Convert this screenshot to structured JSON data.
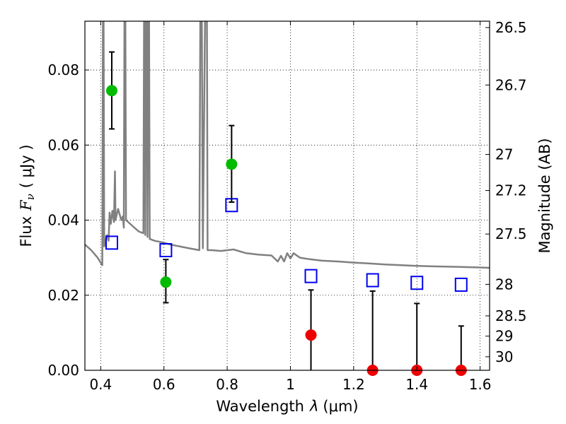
{
  "chart_data": {
    "type": "scatter",
    "xlabel_text": "Wavelength",
    "xlabel_symbol": "λ",
    "xlabel_unit": "(μm)",
    "ylabel_text": "Flux",
    "ylabel_symbol": "F",
    "ylabel_subscript": "ν",
    "ylabel_unit": "( μJy )",
    "y2label": "Magnitude (AB)",
    "xlim": [
      0.35,
      1.63
    ],
    "ylim": [
      0.0,
      0.093
    ],
    "grid": true,
    "x_ticks": [
      {
        "value": 0.4,
        "label": "0.4"
      },
      {
        "value": 0.6,
        "label": "0.6"
      },
      {
        "value": 0.8,
        "label": "0.8"
      },
      {
        "value": 1.0,
        "label": "1"
      },
      {
        "value": 1.2,
        "label": "1.2"
      },
      {
        "value": 1.4,
        "label": "1.4"
      },
      {
        "value": 1.6,
        "label": "1.6"
      }
    ],
    "y_ticks": [
      {
        "value": 0.0,
        "label": "0.00"
      },
      {
        "value": 0.02,
        "label": "0.02"
      },
      {
        "value": 0.04,
        "label": "0.04"
      },
      {
        "value": 0.06,
        "label": "0.06"
      },
      {
        "value": 0.08,
        "label": "0.08"
      }
    ],
    "y2_ticks": [
      {
        "flux": 0.0913,
        "label": "26.5"
      },
      {
        "flux": 0.076,
        "label": "26.7"
      },
      {
        "flux": 0.0575,
        "label": "27"
      },
      {
        "flux": 0.0479,
        "label": "27.2"
      },
      {
        "flux": 0.0363,
        "label": "27.5"
      },
      {
        "flux": 0.0229,
        "label": "28"
      },
      {
        "flux": 0.0145,
        "label": "28.5"
      },
      {
        "flux": 0.0091,
        "label": "29"
      },
      {
        "flux": 0.0036,
        "label": "30"
      }
    ],
    "colors": {
      "detection": "#00bb00",
      "non_detection": "#ee0000",
      "model_photometry": "#0000ee",
      "sed_model": "#808080",
      "error_bar": "#000000"
    },
    "observed": [
      {
        "x": 0.435,
        "y": 0.0745,
        "err_low": 0.0643,
        "err_high": 0.0848,
        "kind": "detection"
      },
      {
        "x": 0.606,
        "y": 0.0235,
        "err_low": 0.018,
        "err_high": 0.0295,
        "kind": "detection"
      },
      {
        "x": 0.814,
        "y": 0.0549,
        "err_low": 0.0448,
        "err_high": 0.0652,
        "kind": "detection"
      },
      {
        "x": 1.065,
        "y": 0.0094,
        "err_low": 0.0,
        "err_high": 0.0214,
        "kind": "non_detection"
      },
      {
        "x": 1.26,
        "y": 0.0,
        "err_low": 0.0,
        "err_high": 0.0211,
        "kind": "non_detection"
      },
      {
        "x": 1.4,
        "y": 0.0,
        "err_low": 0.0,
        "err_high": 0.0178,
        "kind": "non_detection"
      },
      {
        "x": 1.54,
        "y": 0.0,
        "err_low": 0.0,
        "err_high": 0.0118,
        "kind": "non_detection"
      }
    ],
    "model_photometry": [
      {
        "x": 0.435,
        "y": 0.034
      },
      {
        "x": 0.606,
        "y": 0.032
      },
      {
        "x": 0.814,
        "y": 0.044
      },
      {
        "x": 1.065,
        "y": 0.0251
      },
      {
        "x": 1.26,
        "y": 0.024
      },
      {
        "x": 1.4,
        "y": 0.0233
      },
      {
        "x": 1.54,
        "y": 0.0228
      }
    ],
    "sed_model_curve": [
      [
        0.35,
        0.0335
      ],
      [
        0.37,
        0.032
      ],
      [
        0.39,
        0.03
      ],
      [
        0.405,
        0.028
      ],
      [
        0.407,
        0.093
      ],
      [
        0.409,
        0.093
      ],
      [
        0.411,
        0.033
      ],
      [
        0.42,
        0.036
      ],
      [
        0.425,
        0.0345
      ],
      [
        0.428,
        0.042
      ],
      [
        0.432,
        0.039
      ],
      [
        0.437,
        0.0425
      ],
      [
        0.442,
        0.0395
      ],
      [
        0.445,
        0.053
      ],
      [
        0.447,
        0.04
      ],
      [
        0.455,
        0.043
      ],
      [
        0.465,
        0.04
      ],
      [
        0.47,
        0.041
      ],
      [
        0.473,
        0.038
      ],
      [
        0.475,
        0.093
      ],
      [
        0.478,
        0.093
      ],
      [
        0.48,
        0.04
      ],
      [
        0.5,
        0.0385
      ],
      [
        0.52,
        0.037
      ],
      [
        0.535,
        0.0365
      ],
      [
        0.537,
        0.093
      ],
      [
        0.54,
        0.093
      ],
      [
        0.541,
        0.036
      ],
      [
        0.543,
        0.093
      ],
      [
        0.546,
        0.093
      ],
      [
        0.548,
        0.0355
      ],
      [
        0.55,
        0.093
      ],
      [
        0.553,
        0.093
      ],
      [
        0.555,
        0.035
      ],
      [
        0.57,
        0.0345
      ],
      [
        0.6,
        0.034
      ],
      [
        0.62,
        0.0335
      ],
      [
        0.65,
        0.033
      ],
      [
        0.68,
        0.0325
      ],
      [
        0.712,
        0.032
      ],
      [
        0.715,
        0.093
      ],
      [
        0.72,
        0.093
      ],
      [
        0.723,
        0.0325
      ],
      [
        0.73,
        0.093
      ],
      [
        0.736,
        0.093
      ],
      [
        0.738,
        0.032
      ],
      [
        0.75,
        0.032
      ],
      [
        0.78,
        0.0318
      ],
      [
        0.82,
        0.0322
      ],
      [
        0.86,
        0.0312
      ],
      [
        0.9,
        0.0308
      ],
      [
        0.94,
        0.0306
      ],
      [
        0.96,
        0.029
      ],
      [
        0.97,
        0.0305
      ],
      [
        0.98,
        0.029
      ],
      [
        0.99,
        0.0312
      ],
      [
        1.0,
        0.0298
      ],
      [
        1.01,
        0.0312
      ],
      [
        1.03,
        0.03
      ],
      [
        1.06,
        0.0296
      ],
      [
        1.1,
        0.0292
      ],
      [
        1.15,
        0.029
      ],
      [
        1.2,
        0.0287
      ],
      [
        1.26,
        0.0284
      ],
      [
        1.3,
        0.0282
      ],
      [
        1.35,
        0.028
      ],
      [
        1.4,
        0.0278
      ],
      [
        1.45,
        0.0277
      ],
      [
        1.5,
        0.0276
      ],
      [
        1.55,
        0.0275
      ],
      [
        1.6,
        0.0274
      ],
      [
        1.63,
        0.0273
      ]
    ]
  }
}
